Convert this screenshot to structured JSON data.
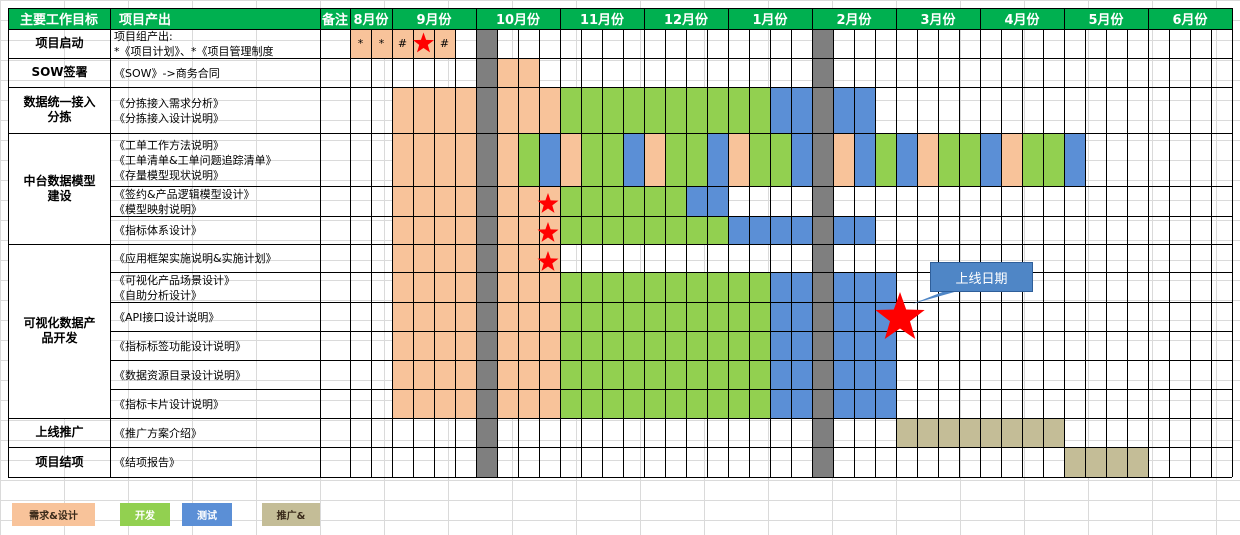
{
  "header": {
    "col_goal": "主要工作目标",
    "col_product": "项目产出",
    "col_note": "备注",
    "months": [
      "8月份",
      "9月份",
      "10月份",
      "11月份",
      "12月份",
      "1月份",
      "2月份",
      "3月份",
      "4月份",
      "5月份",
      "6月份"
    ]
  },
  "rows": [
    {
      "goal": "项目启动",
      "products": [
        "项目组产出:\n*《项目计划》、*《项目管理制度"
      ]
    },
    {
      "goal": "SOW签署",
      "products": [
        "《SOW》->商务合同"
      ]
    },
    {
      "goal": "数据统一接入\n分拣",
      "products": [
        "《分拣接入需求分析》\n《分拣接入设计说明》"
      ]
    },
    {
      "goal": "中台数据模型\n建设",
      "products": [
        "《工单工作方法说明》\n《工单清单&工单问题追踪清单》\n《存量模型现状说明》",
        "《签约&产品逻辑模型设计》\n《模型映射说明》",
        "《指标体系设计》"
      ]
    },
    {
      "goal": "可视化数据产\n品开发",
      "products": [
        "《应用框架实施说明&实施计划》",
        "《可视化产品场景设计》\n《自助分析设计》",
        "《API接口设计说明》",
        "《指标标签功能设计说明》",
        "《数据资源目录设计说明》",
        "《指标卡片设计说明》"
      ]
    },
    {
      "goal": "上线推广",
      "products": [
        "《推广方案介绍》"
      ]
    },
    {
      "goal": "项目结项",
      "products": [
        "《结项报告》"
      ]
    }
  ],
  "markers": {
    "asterisk": "*",
    "hash": "#"
  },
  "callout": "上线日期",
  "legend": [
    {
      "label": "需求&设计",
      "color": "#f8c39a"
    },
    {
      "label": "开发",
      "color": "#92d050"
    },
    {
      "label": "测试",
      "color": "#5b8fd6"
    },
    {
      "label": "推广&",
      "color": "#c4bd97"
    }
  ],
  "colors": {
    "header": "#00b050",
    "design": "#f8c39a",
    "dev": "#92d050",
    "test": "#5b8fd6",
    "promo": "#c4bd97",
    "milestone": "#7f7f7f",
    "star": "#ff0000"
  }
}
